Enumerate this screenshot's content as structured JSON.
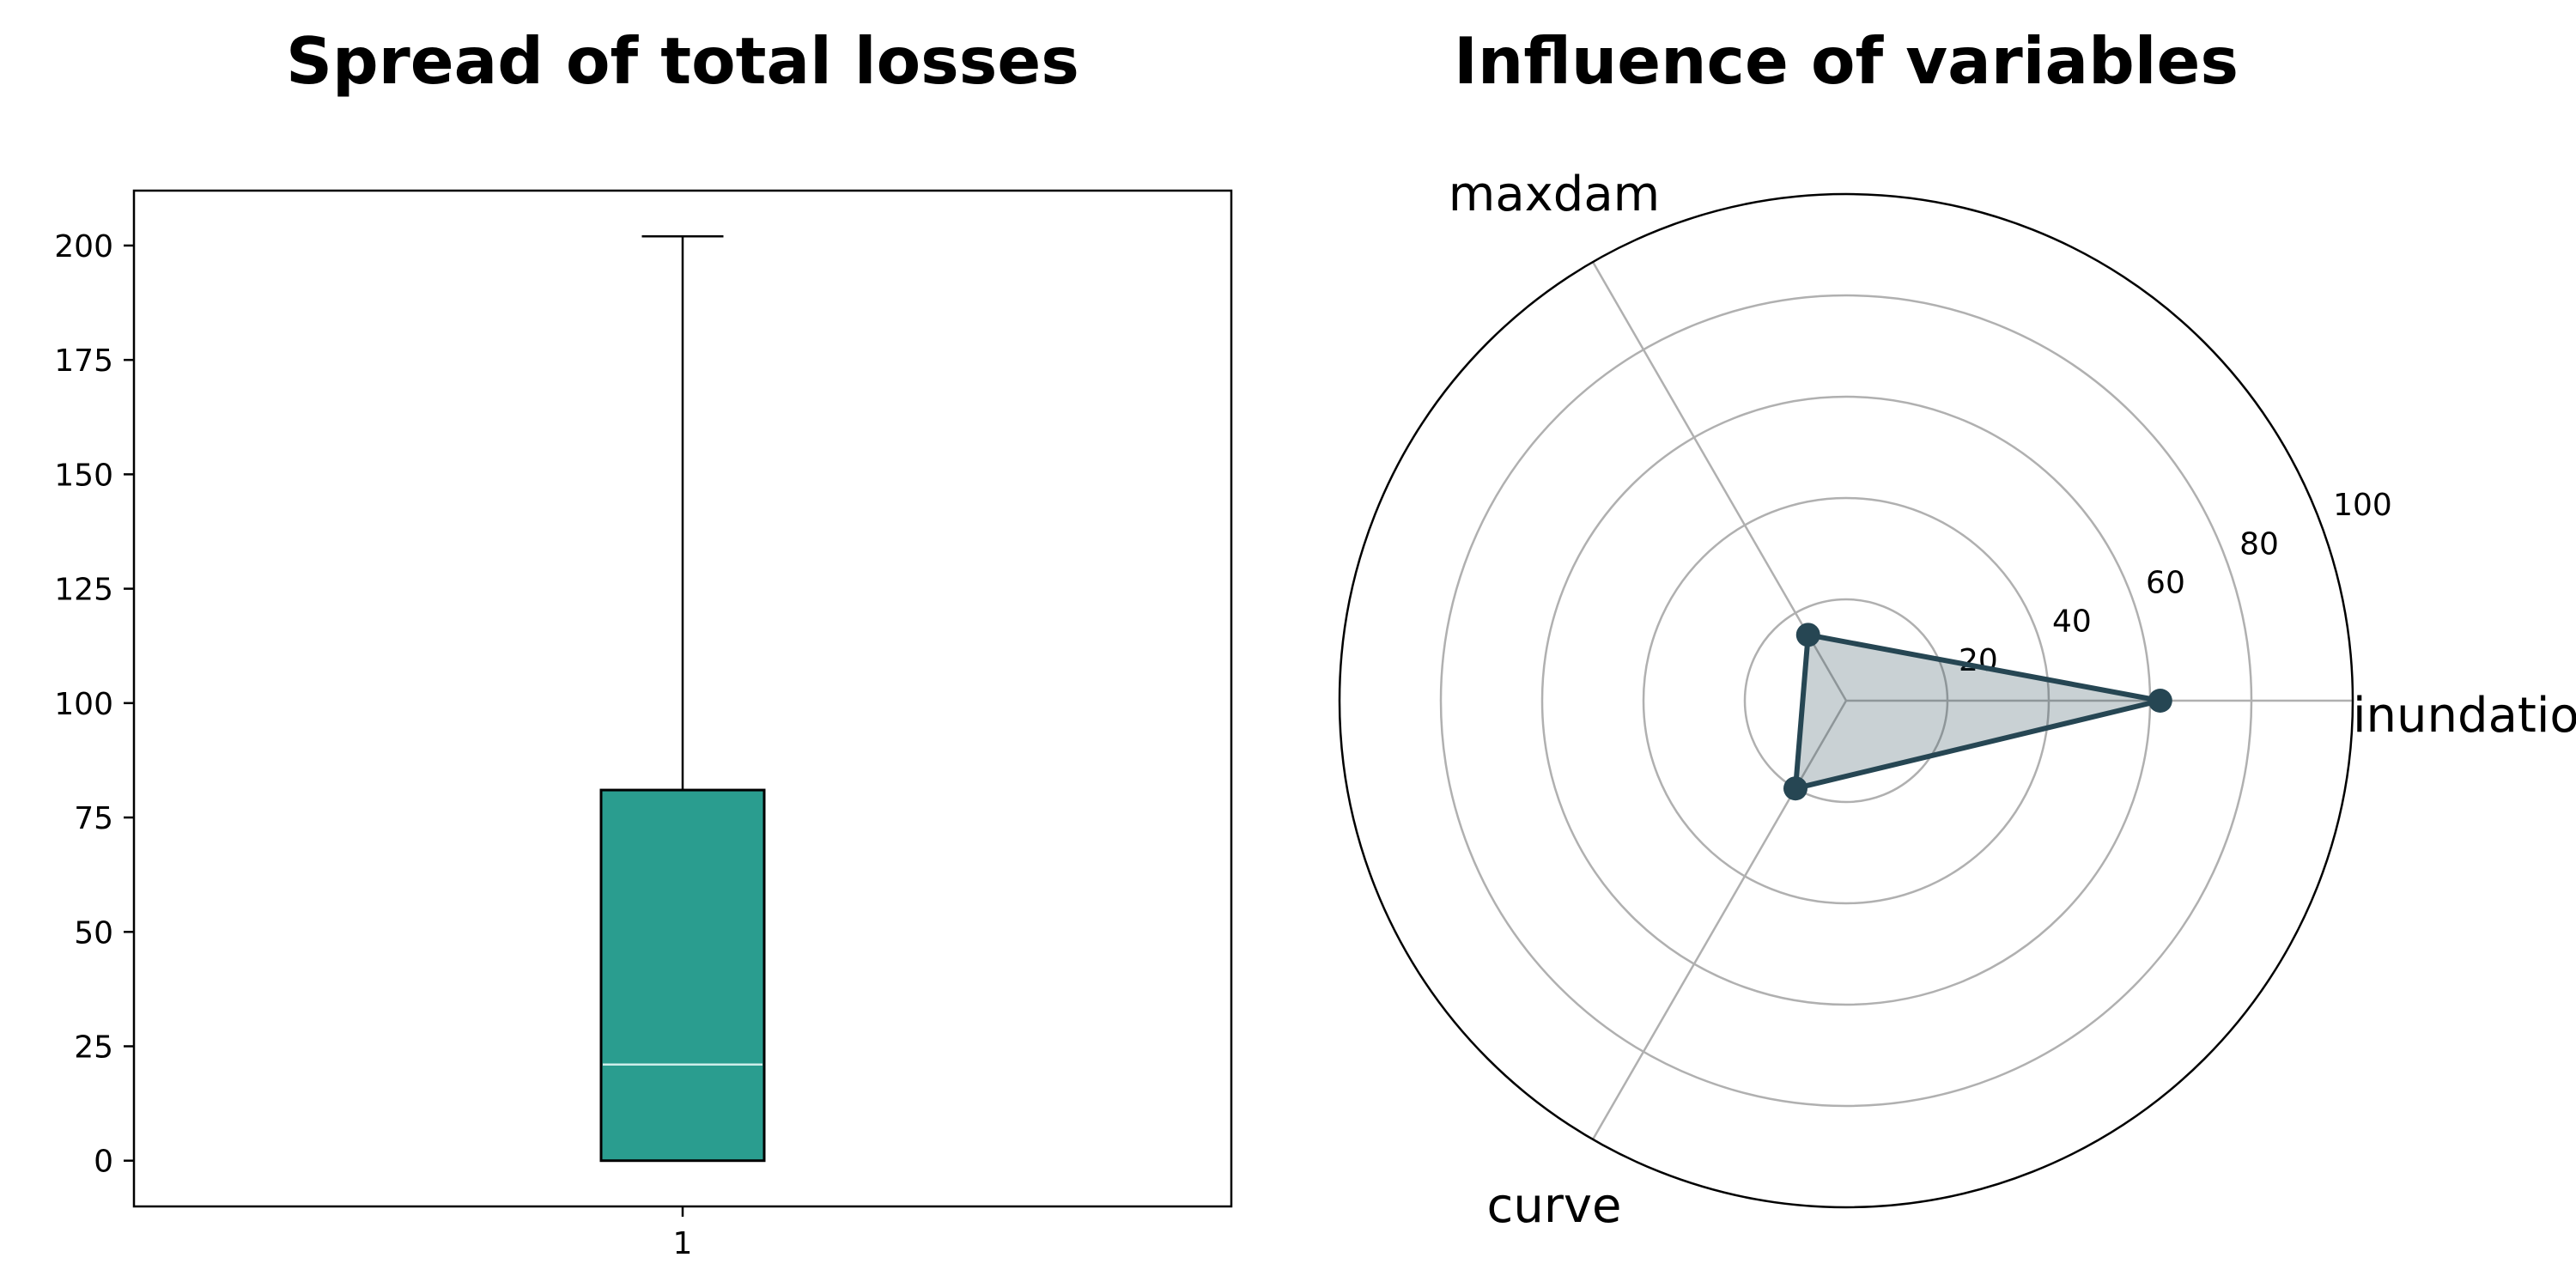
{
  "chart_data": [
    {
      "type": "box",
      "title": "Spread of total losses",
      "categories": [
        "1"
      ],
      "ylim": [
        -10,
        212
      ],
      "yticks": [
        0,
        25,
        50,
        75,
        100,
        125,
        150,
        175,
        200
      ],
      "ytick_labels": [
        "0",
        "25",
        "50",
        "75",
        "100",
        "125",
        "150",
        "175",
        "200"
      ],
      "box": {
        "whisker_low": 0,
        "q1": 0,
        "median": 21,
        "q3": 81,
        "whisker_high": 202
      },
      "box_color": "#2a9d8f",
      "median_color": "#cfeeea",
      "grid": false,
      "legend": "none"
    },
    {
      "type": "radar",
      "title": "Influence of variables",
      "axes": [
        "inundation",
        "maxdam",
        "curve"
      ],
      "series": [
        {
          "values": [
            62,
            15,
            20
          ]
        }
      ],
      "rlim": [
        0,
        100
      ],
      "rticks": [
        20,
        40,
        60,
        80,
        100
      ],
      "rtick_labels": [
        "20",
        "40",
        "60",
        "80",
        "100"
      ],
      "line_color": "#264653",
      "fill_color": "#264653",
      "grid": true,
      "legend": "none"
    }
  ]
}
